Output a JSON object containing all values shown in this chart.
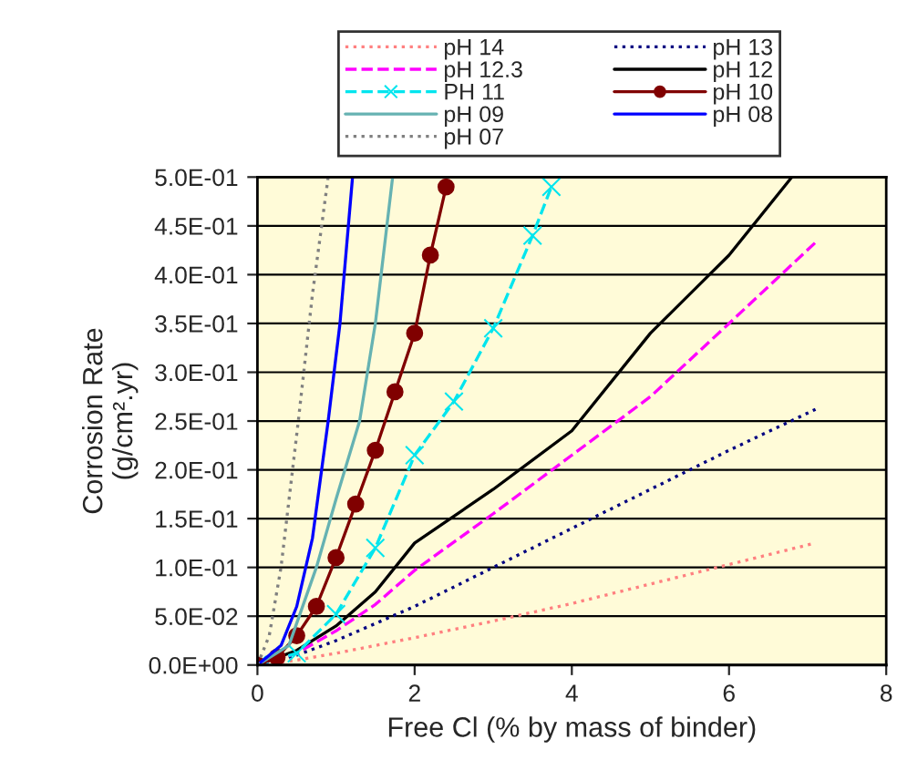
{
  "chart_data": {
    "type": "line",
    "xlabel": "Free Cl (% by mass of binder)",
    "ylabel": "Corrosion Rate\n(g/cm².yr)",
    "xlim": [
      0,
      8
    ],
    "xticks": [
      0,
      2,
      4,
      6,
      8
    ],
    "ylim": [
      0,
      0.5
    ],
    "yticks": [
      {
        "value": 0,
        "label": "0.0E+00"
      },
      {
        "value": 0.05,
        "label": "5.0E-02"
      },
      {
        "value": 0.1,
        "label": "1.0E-01"
      },
      {
        "value": 0.15,
        "label": "1.5E-01"
      },
      {
        "value": 0.2,
        "label": "2.0E-01"
      },
      {
        "value": 0.25,
        "label": "2.5E-01"
      },
      {
        "value": 0.3,
        "label": "3.0E-01"
      },
      {
        "value": 0.35,
        "label": "3.5E-01"
      },
      {
        "value": 0.4,
        "label": "4.0E-01"
      },
      {
        "value": 0.45,
        "label": "4.5E-01"
      },
      {
        "value": 0.5,
        "label": "5.0E-01"
      }
    ],
    "grid": "y",
    "legend": "top",
    "series": [
      {
        "name": "pH 14",
        "color": "#ff8080",
        "line_style": "dotted",
        "marker": "none",
        "x": [
          0,
          0.5,
          1,
          2,
          3,
          4,
          5,
          6,
          7.1
        ],
        "values": [
          0,
          0.005,
          0.012,
          0.028,
          0.045,
          0.063,
          0.083,
          0.103,
          0.125
        ]
      },
      {
        "name": "pH 13",
        "color": "#000080",
        "line_style": "dotted",
        "marker": "none",
        "x": [
          0,
          0.5,
          1,
          2,
          3,
          4,
          5,
          6,
          7.1
        ],
        "values": [
          0,
          0.01,
          0.025,
          0.06,
          0.1,
          0.14,
          0.18,
          0.22,
          0.262
        ]
      },
      {
        "name": "pH 12.3",
        "color": "#ff00ff",
        "line_style": "dashed",
        "marker": "none",
        "x": [
          0,
          0.5,
          1,
          1.5,
          2,
          3,
          4,
          5,
          6,
          7.1
        ],
        "values": [
          0,
          0.012,
          0.035,
          0.062,
          0.097,
          0.155,
          0.215,
          0.275,
          0.35,
          0.433
        ]
      },
      {
        "name": "pH 12",
        "color": "#000000",
        "line_style": "solid",
        "marker": "none",
        "x": [
          0,
          0.5,
          1,
          1.5,
          2,
          3,
          4,
          5,
          6,
          6.8
        ],
        "values": [
          0,
          0.015,
          0.04,
          0.075,
          0.125,
          0.18,
          0.24,
          0.34,
          0.42,
          0.5
        ]
      },
      {
        "name": "PH 11",
        "color": "#00e5ee",
        "line_style": "dashed",
        "marker": "cross",
        "x": [
          0,
          0.5,
          1,
          1.5,
          2,
          2.5,
          3,
          3.5,
          3.74
        ],
        "values": [
          0,
          0.012,
          0.052,
          0.12,
          0.215,
          0.27,
          0.345,
          0.44,
          0.49
        ]
      },
      {
        "name": "pH 10",
        "color": "#800000",
        "line_style": "solid",
        "marker": "circle",
        "x": [
          0,
          0.25,
          0.5,
          0.75,
          1,
          1.25,
          1.5,
          1.75,
          2,
          2.2,
          2.4
        ],
        "values": [
          0,
          0.008,
          0.03,
          0.06,
          0.11,
          0.165,
          0.22,
          0.28,
          0.34,
          0.42,
          0.49
        ]
      },
      {
        "name": "pH 09",
        "color": "#66b2b2",
        "line_style": "solid",
        "marker": "none",
        "x": [
          0,
          0.4,
          0.75,
          1.0,
          1.3,
          1.5,
          1.72
        ],
        "values": [
          0,
          0.02,
          0.1,
          0.17,
          0.25,
          0.35,
          0.5
        ]
      },
      {
        "name": "pH 08",
        "color": "#0000ff",
        "line_style": "solid",
        "marker": "none",
        "x": [
          0,
          0.3,
          0.5,
          0.7,
          0.9,
          1.05,
          1.21
        ],
        "values": [
          0,
          0.02,
          0.06,
          0.13,
          0.25,
          0.35,
          0.5
        ]
      },
      {
        "name": "pH 07",
        "color": "#808080",
        "line_style": "dotted",
        "marker": "none",
        "x": [
          0,
          0.15,
          0.3,
          0.52,
          0.7,
          0.9
        ],
        "values": [
          0,
          0.03,
          0.1,
          0.25,
          0.38,
          0.5
        ]
      }
    ]
  }
}
